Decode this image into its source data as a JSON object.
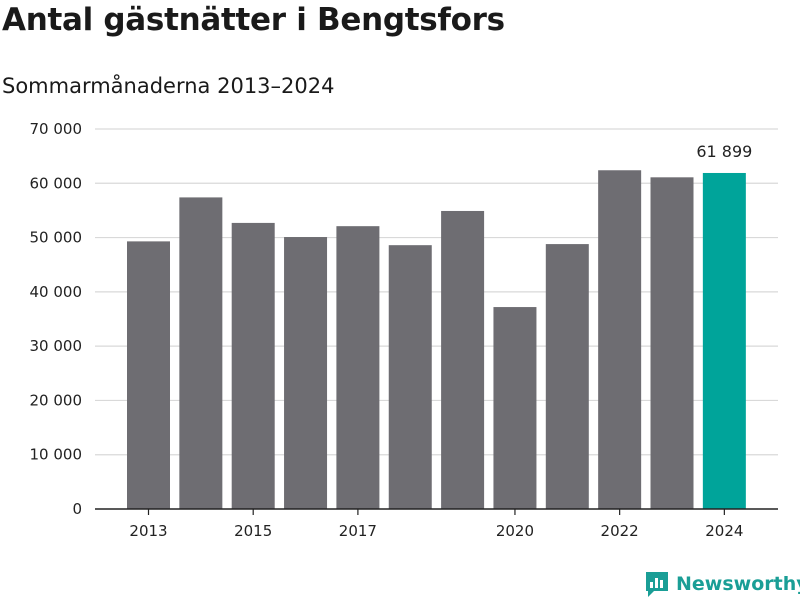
{
  "title": "Antal gästnätter i Bengtsfors",
  "subtitle": "Sommarmånaderna 2013–2024",
  "brand": {
    "name": "Newsworthy",
    "icon": "newsworthy-logo-icon",
    "color": "#1a9e96"
  },
  "colors": {
    "bar": "#6e6d72",
    "highlight": "#00a49a",
    "grid": "#d9d9d9",
    "axis": "#222222"
  },
  "chart_data": {
    "type": "bar",
    "title": "Antal gästnätter i Bengtsfors",
    "subtitle": "Sommarmånaderna 2013–2024",
    "xlabel": "",
    "ylabel": "",
    "categories": [
      "2013",
      "2014",
      "2015",
      "2016",
      "2017",
      "2018",
      "2019",
      "2020",
      "2021",
      "2022",
      "2023",
      "2024"
    ],
    "values": [
      49300,
      57400,
      52700,
      50100,
      52100,
      48600,
      54900,
      37200,
      48800,
      62400,
      61100,
      61899
    ],
    "highlight_index": 11,
    "ylim": [
      0,
      70000
    ],
    "yticks": [
      0,
      10000,
      20000,
      30000,
      40000,
      50000,
      60000,
      70000
    ],
    "ytick_labels": [
      "0",
      "10 000",
      "20 000",
      "30 000",
      "40 000",
      "50 000",
      "60 000",
      "70 000"
    ],
    "xtick_labels": [
      {
        "category": "2013",
        "label": "2013"
      },
      {
        "category": "2015",
        "label": "2015"
      },
      {
        "category": "2017",
        "label": "2017"
      },
      {
        "category": "2020",
        "label": "2020"
      },
      {
        "category": "2022",
        "label": "2022"
      },
      {
        "category": "2024",
        "label": "2024"
      }
    ],
    "annotations": [
      {
        "category": "2024",
        "text": "61 899"
      }
    ],
    "grid": true,
    "legend": "none"
  }
}
